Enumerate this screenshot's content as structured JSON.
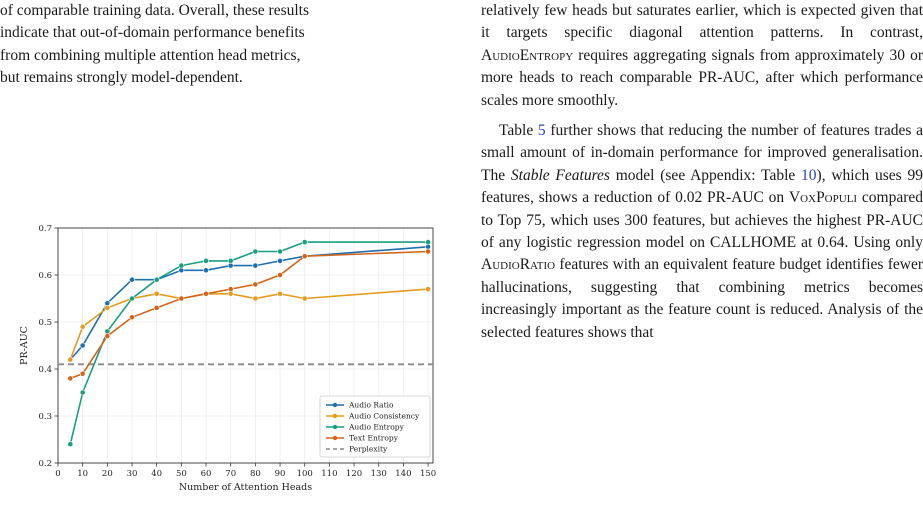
{
  "left_text": {
    "lines": [
      "of comparable training data. Overall, these results",
      "indicate that out-of-domain performance benefits",
      "from combining multiple attention head metrics,",
      "but remains strongly model-dependent."
    ]
  },
  "right_text": {
    "p1": [
      {
        "t": "relatively few heads but saturates earlier, which is expected given that it targets specific diagonal attention patterns. In contrast, "
      },
      {
        "t": "AudioEntropy",
        "sc": true
      },
      {
        "t": " requires aggregating signals from approximately 30 or more heads to reach comparable PR-AUC, after which performance scales more smoothly."
      }
    ],
    "p2": [
      {
        "t": "Table "
      },
      {
        "t": "5",
        "ref": true
      },
      {
        "t": " further shows that reducing the number of features trades a small amount of in-domain performance for improved generalisation. The "
      },
      {
        "t": "Stable Features",
        "it": true
      },
      {
        "t": " model (see Appendix: Table "
      },
      {
        "t": "10",
        "ref": true
      },
      {
        "t": "), which uses 99 features, shows a reduction of 0.02 PR-AUC on "
      },
      {
        "t": "VoxPopuli",
        "sc": true
      },
      {
        "t": " compared to Top 75, which uses 300 features, but achieves the highest PR-AUC of any logistic regression model on CALLHOME at 0.64. Using only "
      },
      {
        "t": "AudioRatio",
        "sc": true
      },
      {
        "t": " features with an equivalent feature budget identifies fewer hallucinations, suggesting that combining metrics becomes increasingly important as the feature count is reduced. Analysis of the selected features shows that"
      }
    ]
  },
  "chart_data": {
    "type": "line",
    "xlabel": "Number of Attention Heads",
    "ylabel": "PR-AUC",
    "xlim": [
      0,
      152
    ],
    "ylim": [
      0.2,
      0.7
    ],
    "x_ticks": [
      0,
      10,
      20,
      30,
      40,
      50,
      60,
      70,
      80,
      90,
      100,
      110,
      120,
      130,
      140,
      150
    ],
    "y_ticks": [
      0.2,
      0.3,
      0.4,
      0.5,
      0.6,
      0.7
    ],
    "grid": true,
    "legend_position": "lower-right",
    "x": [
      5,
      10,
      20,
      30,
      40,
      50,
      60,
      70,
      80,
      90,
      100,
      150
    ],
    "series": [
      {
        "name": "Audio Ratio",
        "color": "#1f6fae",
        "values": [
          0.42,
          0.45,
          0.54,
          0.59,
          0.59,
          0.61,
          0.61,
          0.62,
          0.62,
          0.63,
          0.64,
          0.66
        ]
      },
      {
        "name": "Audio Consistency",
        "color": "#e59b1c",
        "values": [
          0.42,
          0.49,
          0.53,
          0.55,
          0.56,
          0.55,
          0.56,
          0.56,
          0.55,
          0.56,
          0.55,
          0.57
        ]
      },
      {
        "name": "Audio Entropy",
        "color": "#1a9e80",
        "values": [
          0.24,
          0.35,
          0.48,
          0.55,
          0.59,
          0.62,
          0.63,
          0.63,
          0.65,
          0.65,
          0.67,
          0.67
        ]
      },
      {
        "name": "Text Entropy",
        "color": "#d4661b",
        "values": [
          0.38,
          0.39,
          0.47,
          0.51,
          0.53,
          0.55,
          0.56,
          0.57,
          0.58,
          0.6,
          0.64,
          0.65
        ]
      }
    ],
    "baseline": {
      "name": "Perplexity",
      "value": 0.41,
      "color": "#8a8a8a"
    }
  }
}
